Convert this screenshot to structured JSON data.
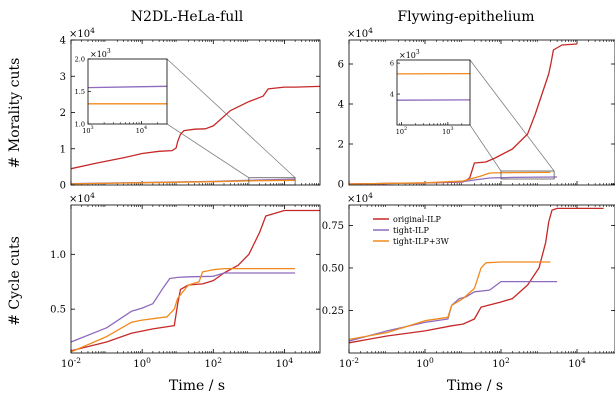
{
  "colors": {
    "original-ILP": "#c62828",
    "tight-ILP": "#8e6bbf",
    "tight-ILP+3W": "#f08a1c",
    "connector": "#808080"
  },
  "labels": {
    "ylabel_top": "# Morality cuts",
    "ylabel_bottom": "# Cycle cuts",
    "xlabel": "Time / s"
  },
  "chart_data": [
    {
      "id": "tl",
      "type": "line",
      "title": "N2DL-HeLa-full",
      "xscale": "log",
      "xlim": [
        0.01,
        100000
      ],
      "ylim": [
        0,
        40000
      ],
      "xticks": [
        0.01,
        1,
        100,
        10000
      ],
      "xtick_labels": [
        "",
        "",
        "",
        ""
      ],
      "yticks": [
        0,
        10000,
        20000,
        30000,
        40000
      ],
      "ytick_labels": [
        "0",
        "1",
        "2",
        "3",
        "4"
      ],
      "multiplier": "×10^4",
      "series": [
        {
          "name": "original-ILP",
          "points": [
            [
              0.01,
              4500
            ],
            [
              0.05,
              6000
            ],
            [
              0.3,
              7500
            ],
            [
              1,
              8700
            ],
            [
              3,
              9300
            ],
            [
              7,
              9500
            ],
            [
              9,
              10200
            ],
            [
              10,
              12000
            ],
            [
              12,
              14000
            ],
            [
              15,
              15000
            ],
            [
              30,
              15400
            ],
            [
              60,
              15500
            ],
            [
              100,
              16300
            ],
            [
              300,
              20500
            ],
            [
              1000,
              23000
            ],
            [
              2500,
              24500
            ],
            [
              3500,
              26500
            ],
            [
              10000,
              27000
            ],
            [
              20000,
              27000
            ],
            [
              100000,
              27200
            ]
          ]
        },
        {
          "name": "tight-ILP",
          "points": [
            [
              0.01,
              400
            ],
            [
              1,
              700
            ],
            [
              100,
              1000
            ],
            [
              1000,
              1300
            ],
            [
              20000,
              1600
            ]
          ]
        },
        {
          "name": "tight-ILP+3W",
          "points": [
            [
              0.01,
              300
            ],
            [
              1,
              600
            ],
            [
              100,
              900
            ],
            [
              1000,
              1150
            ],
            [
              20000,
              1300
            ]
          ]
        }
      ],
      "inset": {
        "xscale": "log",
        "xlim": [
          1000,
          30000
        ],
        "ylim": [
          1000,
          2000
        ],
        "xticks": [
          1000,
          10000
        ],
        "xtick_labels": [
          "10^3",
          "10^4"
        ],
        "yticks": [
          1000,
          1500,
          2000
        ],
        "ytick_labels": [
          "1.0",
          "1.5",
          "2.0"
        ],
        "multiplier": "×10^3",
        "zoom_region": {
          "x": [
            1000,
            20000
          ],
          "y": [
            0,
            2000
          ]
        },
        "series": [
          {
            "name": "tight-ILP",
            "points": [
              [
                1000,
                1560
              ],
              [
                30000,
                1580
              ]
            ]
          },
          {
            "name": "tight-ILP+3W",
            "points": [
              [
                1000,
                1310
              ],
              [
                30000,
                1310
              ]
            ]
          }
        ]
      }
    },
    {
      "id": "tr",
      "type": "line",
      "title": "Flywing-epithelium",
      "xscale": "log",
      "xlim": [
        0.01,
        100000
      ],
      "ylim": [
        -500,
        72000
      ],
      "xticks": [
        0.01,
        1,
        100,
        10000
      ],
      "xtick_labels": [
        "",
        "",
        "",
        ""
      ],
      "yticks": [
        0,
        20000,
        40000,
        60000
      ],
      "ytick_labels": [
        "0",
        "2",
        "4",
        "6"
      ],
      "multiplier": "×10^4",
      "series": [
        {
          "name": "original-ILP",
          "points": [
            [
              0.01,
              0
            ],
            [
              1,
              500
            ],
            [
              10,
              1000
            ],
            [
              15,
              3000
            ],
            [
              20,
              10500
            ],
            [
              40,
              11000
            ],
            [
              70,
              13000
            ],
            [
              200,
              17500
            ],
            [
              500,
              25000
            ],
            [
              800,
              35000
            ],
            [
              1200,
              45000
            ],
            [
              1800,
              55000
            ],
            [
              2100,
              61000
            ],
            [
              2400,
              67000
            ],
            [
              4000,
              69500
            ],
            [
              10000,
              70000
            ]
          ]
        },
        {
          "name": "tight-ILP",
          "points": [
            [
              0.01,
              0
            ],
            [
              1,
              500
            ],
            [
              10,
              1200
            ],
            [
              20,
              2000
            ],
            [
              50,
              3000
            ],
            [
              200,
              3300
            ],
            [
              3000,
              3500
            ]
          ]
        },
        {
          "name": "tight-ILP+3W",
          "points": [
            [
              0.01,
              0
            ],
            [
              1,
              600
            ],
            [
              10,
              1500
            ],
            [
              30,
              4000
            ],
            [
              50,
              5500
            ],
            [
              200,
              5700
            ],
            [
              2000,
              5800
            ]
          ]
        }
      ],
      "inset": {
        "xscale": "log",
        "xlim": [
          80,
          3000
        ],
        "ylim": [
          2000,
          6200
        ],
        "xticks": [
          100,
          1000
        ],
        "xtick_labels": [
          "10^2",
          "10^3"
        ],
        "yticks": [
          4000,
          6000
        ],
        "ytick_labels": [
          "4",
          "6"
        ],
        "multiplier": "×10^3",
        "zoom_region": {
          "x": [
            100,
            2500
          ],
          "y": [
            2500,
            6500
          ]
        },
        "series": [
          {
            "name": "tight-ILP",
            "points": [
              [
                80,
                3600
              ],
              [
                3000,
                3620
              ]
            ]
          },
          {
            "name": "tight-ILP+3W",
            "points": [
              [
                80,
                5300
              ],
              [
                3000,
                5320
              ]
            ]
          }
        ]
      }
    },
    {
      "id": "bl",
      "type": "line",
      "title": "",
      "xscale": "log",
      "xlim": [
        0.01,
        100000
      ],
      "ylim": [
        1000,
        14500
      ],
      "xticks": [
        0.01,
        1,
        100,
        10000
      ],
      "xtick_labels": [
        "10^-2",
        "10^0",
        "10^2",
        "10^4"
      ],
      "yticks": [
        5000,
        10000
      ],
      "ytick_labels": [
        "0.5",
        "1.0"
      ],
      "multiplier": "×10^4",
      "series": [
        {
          "name": "original-ILP",
          "points": [
            [
              0.01,
              1200
            ],
            [
              0.1,
              2000
            ],
            [
              0.5,
              2800
            ],
            [
              2,
              3200
            ],
            [
              8,
              3500
            ],
            [
              10,
              5500
            ],
            [
              12,
              6800
            ],
            [
              20,
              7200
            ],
            [
              50,
              7300
            ],
            [
              100,
              7600
            ],
            [
              200,
              8300
            ],
            [
              500,
              9000
            ],
            [
              1000,
              10000
            ],
            [
              2000,
              12000
            ],
            [
              3000,
              13500
            ],
            [
              10000,
              14000
            ],
            [
              100000,
              14000
            ]
          ]
        },
        {
          "name": "tight-ILP",
          "points": [
            [
              0.01,
              2000
            ],
            [
              0.1,
              3300
            ],
            [
              0.5,
              4800
            ],
            [
              1,
              5100
            ],
            [
              2,
              5500
            ],
            [
              4,
              7000
            ],
            [
              6,
              7800
            ],
            [
              10,
              7900
            ],
            [
              20,
              7950
            ],
            [
              100,
              8000
            ],
            [
              200,
              8300
            ],
            [
              20000,
              8300
            ]
          ]
        },
        {
          "name": "tight-ILP+3W",
          "points": [
            [
              0.01,
              1100
            ],
            [
              0.1,
              2500
            ],
            [
              0.5,
              3800
            ],
            [
              1,
              4000
            ],
            [
              5,
              4300
            ],
            [
              8,
              5000
            ],
            [
              10,
              6000
            ],
            [
              20,
              7200
            ],
            [
              40,
              7500
            ],
            [
              50,
              8400
            ],
            [
              100,
              8600
            ],
            [
              200,
              8700
            ],
            [
              20000,
              8700
            ]
          ]
        }
      ]
    },
    {
      "id": "br",
      "type": "line",
      "title": "",
      "xscale": "log",
      "xlim": [
        0.01,
        100000
      ],
      "ylim": [
        0,
        8700
      ],
      "xticks": [
        0.01,
        1,
        100,
        10000
      ],
      "xtick_labels": [
        "10^-2",
        "10^0",
        "10^2",
        "10^4"
      ],
      "yticks": [
        2500,
        5000,
        7500
      ],
      "ytick_labels": [
        "0.25",
        "0.50",
        "0.75"
      ],
      "multiplier": "×10^4",
      "legend": {
        "position": "top-left",
        "entries": [
          "original-ILP",
          "tight-ILP",
          "tight-ILP+3W"
        ]
      },
      "series": [
        {
          "name": "original-ILP",
          "points": [
            [
              0.01,
              600
            ],
            [
              0.1,
              1000
            ],
            [
              1,
              1300
            ],
            [
              5,
              1600
            ],
            [
              10,
              1700
            ],
            [
              20,
              2000
            ],
            [
              30,
              2700
            ],
            [
              100,
              3000
            ],
            [
              200,
              3200
            ],
            [
              500,
              4000
            ],
            [
              1000,
              5000
            ],
            [
              1500,
              6500
            ],
            [
              1800,
              7700
            ],
            [
              2200,
              8400
            ],
            [
              3000,
              8500
            ],
            [
              10000,
              8500
            ],
            [
              50000,
              8500
            ]
          ]
        },
        {
          "name": "tight-ILP",
          "points": [
            [
              0.01,
              700
            ],
            [
              0.1,
              1300
            ],
            [
              1,
              1800
            ],
            [
              4,
              2000
            ],
            [
              5,
              2800
            ],
            [
              8,
              3200
            ],
            [
              12,
              3300
            ],
            [
              20,
              3600
            ],
            [
              50,
              3700
            ],
            [
              100,
              4200
            ],
            [
              3000,
              4200
            ]
          ]
        },
        {
          "name": "tight-ILP+3W",
          "points": [
            [
              0.01,
              800
            ],
            [
              0.1,
              1200
            ],
            [
              1,
              1900
            ],
            [
              4,
              2100
            ],
            [
              5,
              2800
            ],
            [
              10,
              3200
            ],
            [
              20,
              3800
            ],
            [
              30,
              5000
            ],
            [
              40,
              5300
            ],
            [
              100,
              5350
            ],
            [
              2000,
              5350
            ]
          ]
        }
      ]
    }
  ]
}
